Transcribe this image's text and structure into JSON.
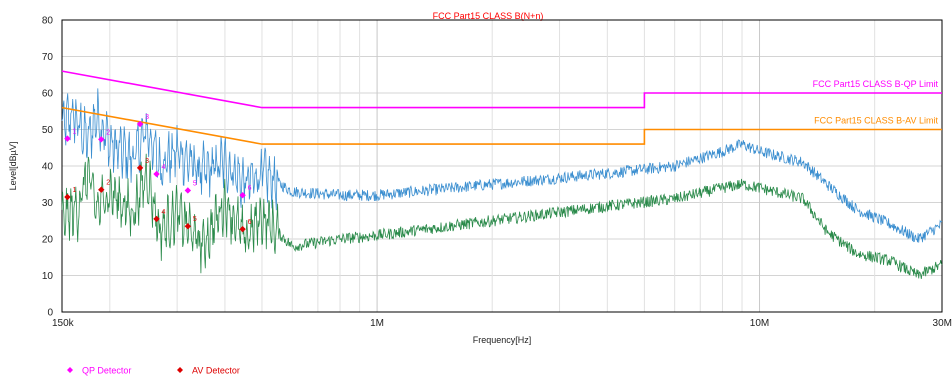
{
  "chart_data": {
    "type": "line",
    "title": "FCC Part15 CLASS B(N+n)",
    "xlabel": "Frequency[Hz]",
    "ylabel": "Level[dBµV]",
    "x_scale": "log",
    "xlim": [
      150000,
      30000000
    ],
    "ylim": [
      0,
      80
    ],
    "yticks": [
      0,
      10,
      20,
      30,
      40,
      50,
      60,
      70,
      80
    ],
    "xticks_major": [
      {
        "value": 150000,
        "label": "150k"
      },
      {
        "value": 1000000,
        "label": "1M"
      },
      {
        "value": 10000000,
        "label": "10M"
      },
      {
        "value": 30000000,
        "label": "30M"
      }
    ],
    "grid": true,
    "limit_lines": [
      {
        "name": "FCC Part15 CLASS B-QP Limit",
        "color": "#ff00ff",
        "points": [
          [
            150000,
            66
          ],
          [
            500000,
            56
          ],
          [
            5000000,
            56
          ],
          [
            5000000,
            60
          ],
          [
            30000000,
            60
          ]
        ]
      },
      {
        "name": "FCC Part15 CLASS B-AV Limit",
        "color": "#ff8c00",
        "points": [
          [
            150000,
            56
          ],
          [
            500000,
            46
          ],
          [
            5000000,
            46
          ],
          [
            5000000,
            50
          ],
          [
            30000000,
            50
          ]
        ]
      }
    ],
    "traces": [
      {
        "color": "#3c8fd0",
        "points": [
          [
            150000,
            51
          ],
          [
            160000,
            54
          ],
          [
            175000,
            47
          ],
          [
            185000,
            54
          ],
          [
            200000,
            46
          ],
          [
            230000,
            42
          ],
          [
            250000,
            50
          ],
          [
            270000,
            40
          ],
          [
            300000,
            44
          ],
          [
            350000,
            38
          ],
          [
            400000,
            41
          ],
          [
            450000,
            35
          ],
          [
            500000,
            38
          ],
          [
            600000,
            33
          ],
          [
            800000,
            32
          ],
          [
            1000000,
            32
          ],
          [
            2000000,
            35
          ],
          [
            4000000,
            38
          ],
          [
            6000000,
            40
          ],
          [
            8000000,
            44
          ],
          [
            9000000,
            46
          ],
          [
            10000000,
            44
          ],
          [
            13000000,
            41
          ],
          [
            15000000,
            35
          ],
          [
            18000000,
            28
          ],
          [
            22000000,
            24
          ],
          [
            26000000,
            20
          ],
          [
            30000000,
            24
          ]
        ]
      },
      {
        "color": "#2a8a4a",
        "points": [
          [
            150000,
            26
          ],
          [
            165000,
            28
          ],
          [
            175000,
            38
          ],
          [
            185000,
            28
          ],
          [
            200000,
            33
          ],
          [
            230000,
            27
          ],
          [
            250000,
            38
          ],
          [
            270000,
            22
          ],
          [
            300000,
            27
          ],
          [
            350000,
            18
          ],
          [
            400000,
            30
          ],
          [
            450000,
            20
          ],
          [
            500000,
            26
          ],
          [
            600000,
            18
          ],
          [
            800000,
            20
          ],
          [
            1000000,
            21
          ],
          [
            2000000,
            25
          ],
          [
            4000000,
            29
          ],
          [
            6000000,
            31
          ],
          [
            8000000,
            34
          ],
          [
            9000000,
            35
          ],
          [
            10000000,
            34
          ],
          [
            13000000,
            31
          ],
          [
            15000000,
            22
          ],
          [
            18000000,
            16
          ],
          [
            22000000,
            14
          ],
          [
            26000000,
            10
          ],
          [
            30000000,
            13
          ]
        ]
      }
    ],
    "markers": [
      {
        "series": "QP Detector",
        "label": "1",
        "x": 155000,
        "y": 47.5
      },
      {
        "series": "QP Detector",
        "label": "2",
        "x": 190000,
        "y": 47.3
      },
      {
        "series": "QP Detector",
        "label": "3",
        "x": 240000,
        "y": 51.5
      },
      {
        "series": "QP Detector",
        "label": "4",
        "x": 265000,
        "y": 37.8
      },
      {
        "series": "QP Detector",
        "label": "5",
        "x": 320000,
        "y": 33.3
      },
      {
        "series": "QP Detector",
        "label": "6",
        "x": 445000,
        "y": 32.0
      },
      {
        "series": "AV Detector",
        "label": "1",
        "x": 155000,
        "y": 31.5
      },
      {
        "series": "AV Detector",
        "label": "2",
        "x": 190000,
        "y": 33.5
      },
      {
        "series": "AV Detector",
        "label": "3",
        "x": 240000,
        "y": 39.5
      },
      {
        "series": "AV Detector",
        "label": "4",
        "x": 265000,
        "y": 25.5
      },
      {
        "series": "AV Detector",
        "label": "5",
        "x": 320000,
        "y": 23.5
      },
      {
        "series": "AV Detector",
        "label": "6",
        "x": 445000,
        "y": 22.7
      }
    ],
    "legend": [
      {
        "name": "QP Detector",
        "color": "#ff00ff"
      },
      {
        "name": "AV Detector",
        "color": "#dd0000"
      }
    ],
    "legend_position": "bottom-left"
  }
}
